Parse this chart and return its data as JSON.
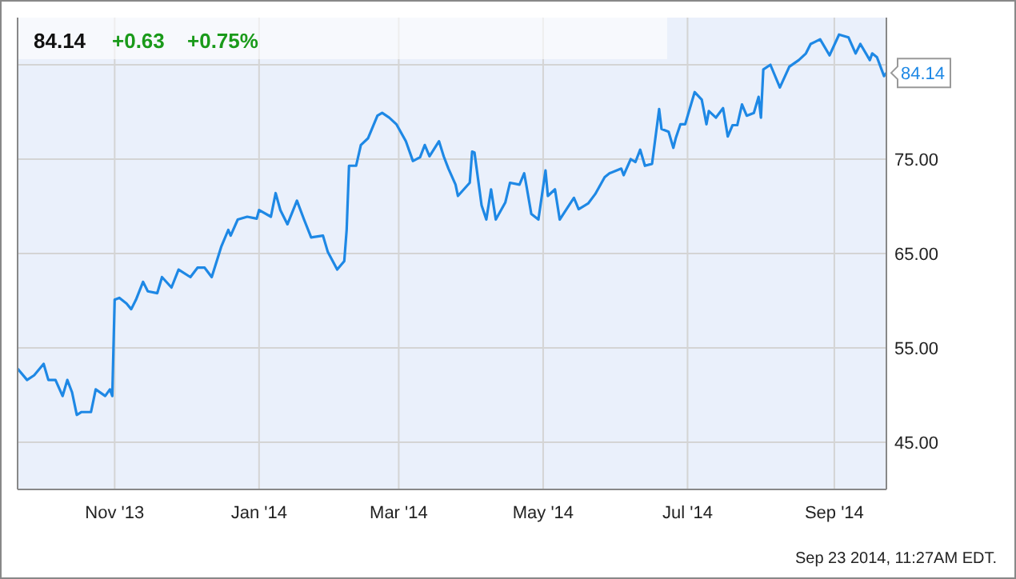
{
  "chart_data": {
    "type": "line",
    "title": "84.14",
    "annotations": [
      "+0.63",
      "+0.75%",
      {
        "text": "84.14",
        "x": "2014-09-23",
        "y": 84.14
      },
      "Sep 23 2014, 11:27AM EDT."
    ],
    "xlim": [
      "2013-09-21",
      "2014-09-23"
    ],
    "xticks": [
      {
        "value": "2013-11-01",
        "label": "Nov '13"
      },
      {
        "value": "2014-01-01",
        "label": "Jan '14"
      },
      {
        "value": "2014-03-01",
        "label": "Mar '14"
      },
      {
        "value": "2014-05-01",
        "label": "May '14"
      },
      {
        "value": "2014-07-01",
        "label": "Jul '14"
      },
      {
        "value": "2014-09-01",
        "label": "Sep '14"
      }
    ],
    "ylim": [
      40,
      90
    ],
    "yticks": [
      {
        "value": 45,
        "label": "45.00"
      },
      {
        "value": 55,
        "label": "55.00"
      },
      {
        "value": 65,
        "label": "65.00"
      },
      {
        "value": 75,
        "label": "75.00"
      },
      {
        "value": 85,
        "label": null
      }
    ],
    "grid": true,
    "marker": "none",
    "line_style": "solid",
    "series": [
      {
        "color": "#1e88e5",
        "x": [
          "2013-09-21",
          "2013-09-25",
          "2013-09-28",
          "2013-10-02",
          "2013-10-04",
          "2013-10-07",
          "2013-10-10",
          "2013-10-12",
          "2013-10-14",
          "2013-10-16",
          "2013-10-18",
          "2013-10-22",
          "2013-10-24",
          "2013-10-28",
          "2013-10-30",
          "2013-10-31",
          "2013-11-01",
          "2013-11-03",
          "2013-11-06",
          "2013-11-08",
          "2013-11-10",
          "2013-11-13",
          "2013-11-15",
          "2013-11-19",
          "2013-11-21",
          "2013-11-25",
          "2013-11-28",
          "2013-12-03",
          "2013-12-06",
          "2013-12-09",
          "2013-12-12",
          "2013-12-16",
          "2013-12-19",
          "2013-12-20",
          "2013-12-23",
          "2013-12-27",
          "2013-12-31",
          "2014-01-01",
          "2014-01-06",
          "2014-01-08",
          "2014-01-10",
          "2014-01-13",
          "2014-01-17",
          "2014-01-20",
          "2014-01-23",
          "2014-01-28",
          "2014-01-30",
          "2014-02-03",
          "2014-02-06",
          "2014-02-07",
          "2014-02-08",
          "2014-02-11",
          "2014-02-13",
          "2014-02-16",
          "2014-02-20",
          "2014-02-22",
          "2014-02-25",
          "2014-02-28",
          "2014-03-04",
          "2014-03-07",
          "2014-03-10",
          "2014-03-12",
          "2014-03-14",
          "2014-03-18",
          "2014-03-20",
          "2014-03-22",
          "2014-03-25",
          "2014-03-26",
          "2014-03-31",
          "2014-04-01",
          "2014-04-02",
          "2014-04-05",
          "2014-04-07",
          "2014-04-09",
          "2014-04-11",
          "2014-04-15",
          "2014-04-17",
          "2014-04-21",
          "2014-04-23",
          "2014-04-24",
          "2014-04-26",
          "2014-04-29",
          "2014-05-02",
          "2014-05-03",
          "2014-05-06",
          "2014-05-08",
          "2014-05-14",
          "2014-05-16",
          "2014-05-20",
          "2014-05-23",
          "2014-05-27",
          "2014-05-29",
          "2014-06-03",
          "2014-06-04",
          "2014-06-07",
          "2014-06-09",
          "2014-06-11",
          "2014-06-13",
          "2014-06-16",
          "2014-06-19",
          "2014-06-20",
          "2014-06-23",
          "2014-06-25",
          "2014-06-26",
          "2014-06-28",
          "2014-06-30",
          "2014-07-02",
          "2014-07-04",
          "2014-07-07",
          "2014-07-09",
          "2014-07-10",
          "2014-07-13",
          "2014-07-16",
          "2014-07-18",
          "2014-07-20",
          "2014-07-22",
          "2014-07-24",
          "2014-07-26",
          "2014-07-29",
          "2014-07-31",
          "2014-08-01",
          "2014-08-02",
          "2014-08-05",
          "2014-08-09",
          "2014-08-13",
          "2014-08-17",
          "2014-08-20",
          "2014-08-22",
          "2014-08-26",
          "2014-08-30",
          "2014-09-03",
          "2014-09-07",
          "2014-09-10",
          "2014-09-12",
          "2014-09-16",
          "2014-09-17",
          "2014-09-19",
          "2014-09-22",
          "2014-09-23"
        ],
        "values": [
          52.8,
          51.6,
          52.1,
          53.3,
          51.6,
          51.6,
          49.9,
          51.6,
          50.3,
          47.9,
          48.2,
          48.2,
          50.6,
          49.9,
          50.6,
          49.9,
          60.1,
          60.3,
          59.7,
          59.1,
          60.1,
          62.0,
          61.0,
          60.8,
          62.5,
          61.4,
          63.3,
          62.5,
          63.5,
          63.5,
          62.5,
          65.7,
          67.5,
          66.9,
          68.6,
          68.9,
          68.7,
          69.6,
          68.9,
          71.4,
          69.6,
          68.1,
          70.6,
          68.6,
          66.7,
          66.9,
          65.2,
          63.3,
          64.2,
          67.5,
          74.3,
          74.3,
          76.5,
          77.2,
          79.6,
          79.9,
          79.4,
          78.7,
          76.9,
          74.8,
          75.2,
          76.5,
          75.3,
          76.9,
          75.3,
          74.0,
          72.3,
          71.1,
          72.5,
          75.8,
          75.7,
          70.1,
          68.6,
          71.8,
          68.6,
          70.4,
          72.5,
          72.3,
          73.5,
          72.1,
          69.2,
          68.6,
          73.8,
          71.1,
          71.8,
          68.6,
          70.9,
          69.7,
          70.3,
          71.3,
          73.1,
          73.5,
          74.0,
          73.3,
          75.0,
          74.7,
          76.0,
          74.3,
          74.5,
          80.3,
          78.2,
          77.9,
          76.2,
          77.2,
          78.7,
          78.7,
          80.4,
          82.1,
          81.3,
          78.7,
          80.1,
          79.4,
          80.4,
          77.4,
          78.6,
          78.6,
          80.8,
          79.6,
          79.9,
          81.6,
          79.4,
          84.5,
          85.0,
          82.6,
          84.8,
          85.5,
          86.2,
          87.2,
          87.7,
          86.0,
          88.2,
          87.9,
          86.2,
          87.2,
          85.5,
          86.2,
          85.8,
          83.8,
          84.14
        ]
      }
    ]
  }
}
